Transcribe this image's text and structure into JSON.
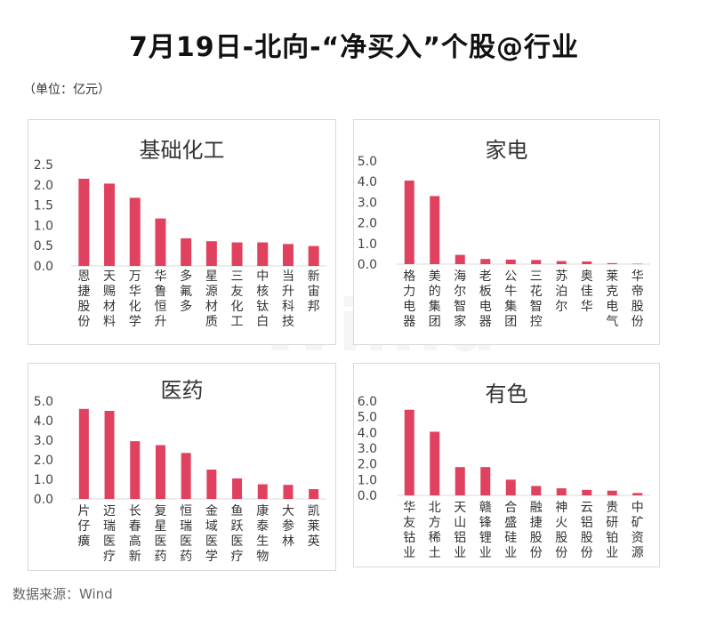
{
  "title": "7月19日-北向-“净买入”个股@行业",
  "unit": "（单位：亿元）",
  "source": "数据来源：Wind",
  "watermark": "Win.d",
  "colors": {
    "bar": "#e0415f",
    "axis": "#d9d9d9"
  },
  "chart_data": [
    {
      "type": "bar",
      "title": "基础化工",
      "categories": [
        "恩捷股份",
        "天赐材料",
        "万华化学",
        "华鲁恒升",
        "多氟多",
        "星源材质",
        "三友化工",
        "中核钛白",
        "当升科技",
        "新宙邦"
      ],
      "values": [
        2.15,
        2.03,
        1.68,
        1.17,
        0.68,
        0.61,
        0.58,
        0.58,
        0.54,
        0.49
      ],
      "ylim": [
        0,
        2.5
      ],
      "yticks": [
        "0.0",
        "0.5",
        "1.0",
        "1.5",
        "2.0",
        "2.5"
      ]
    },
    {
      "type": "bar",
      "title": "家电",
      "categories": [
        "格力电器",
        "美的集团",
        "海尔智家",
        "老板电器",
        "公牛集团",
        "三花智控",
        "苏泊尔",
        "奥佳华",
        "莱克电气",
        "华帝股份"
      ],
      "values": [
        4.05,
        3.3,
        0.45,
        0.25,
        0.22,
        0.2,
        0.15,
        0.13,
        0.05,
        0.02
      ],
      "ylim": [
        0,
        5
      ],
      "yticks": [
        "0.0",
        "1.0",
        "2.0",
        "3.0",
        "4.0",
        "5.0"
      ]
    },
    {
      "type": "bar",
      "title": "医药",
      "categories": [
        "片仔癀",
        "迈瑞医疗",
        "长春高新",
        "复星医药",
        "恒瑞医药",
        "金域医学",
        "鱼跃医疗",
        "康泰生物",
        "大参林",
        "凯莱英"
      ],
      "values": [
        4.6,
        4.5,
        2.95,
        2.75,
        2.35,
        1.5,
        1.05,
        0.75,
        0.72,
        0.5
      ],
      "ylim": [
        0,
        5
      ],
      "yticks": [
        "0.0",
        "1.0",
        "2.0",
        "3.0",
        "4.0",
        "5.0"
      ]
    },
    {
      "type": "bar",
      "title": "有色",
      "categories": [
        "华友钴业",
        "北方稀土",
        "天山铝业",
        "赣锋锂业",
        "合盛硅业",
        "融捷股份",
        "神火股份",
        "云铝股份",
        "贵研铂业",
        "中矿资源"
      ],
      "values": [
        5.45,
        4.05,
        1.8,
        1.8,
        1.0,
        0.6,
        0.45,
        0.35,
        0.3,
        0.15
      ],
      "ylim": [
        0,
        6
      ],
      "yticks": [
        "0.0",
        "1.0",
        "2.0",
        "3.0",
        "4.0",
        "5.0",
        "6.0"
      ]
    }
  ]
}
